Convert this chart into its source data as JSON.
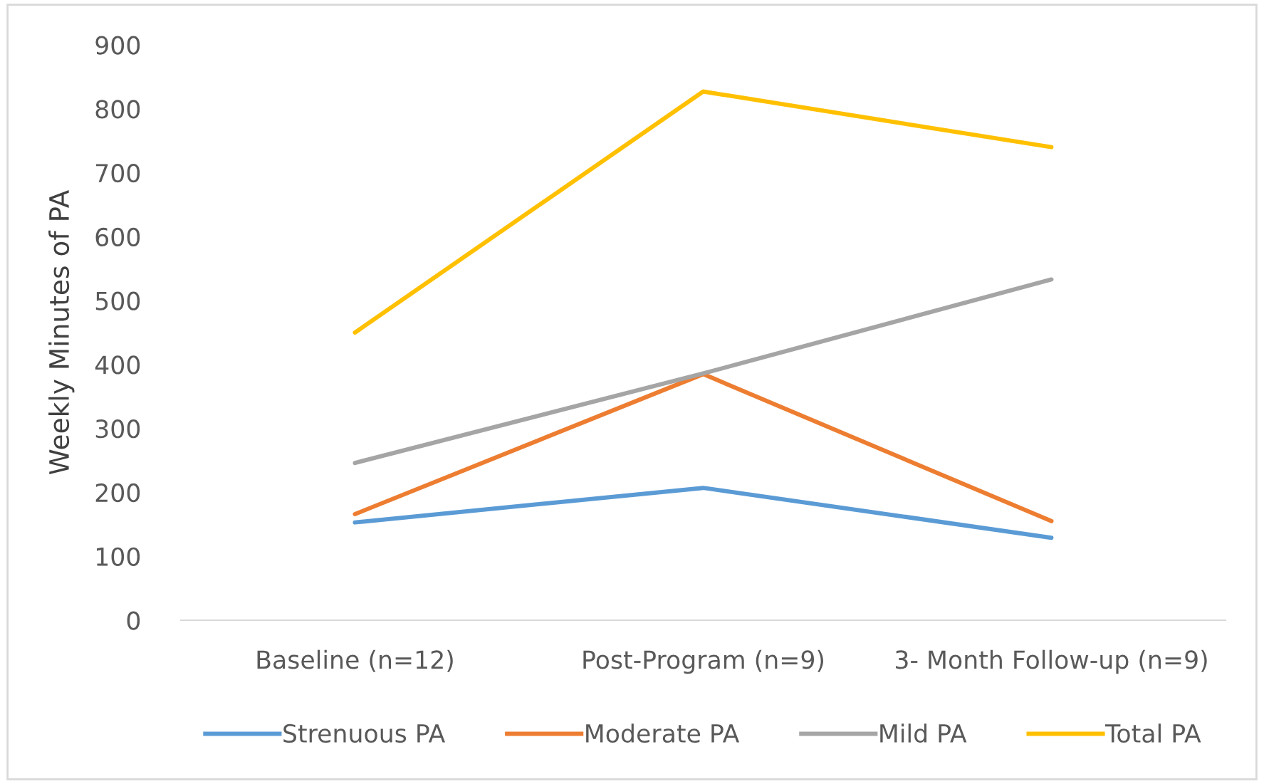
{
  "chart_data": {
    "type": "line",
    "ylabel": "Weekly Minutes of PA",
    "categories": [
      "Baseline (n=12)",
      "Post-Program (n=9)",
      "3- Month Follow-up (n=9)"
    ],
    "series": [
      {
        "name": "Strenuous PA",
        "color": "#5b9bd5",
        "values": [
          153,
          207,
          129
        ]
      },
      {
        "name": "Moderate PA",
        "color": "#ed7d31",
        "values": [
          166,
          385,
          155
        ]
      },
      {
        "name": "Mild PA",
        "color": "#a5a5a5",
        "values": [
          246,
          386,
          533
        ]
      },
      {
        "name": "Total PA",
        "color": "#ffc000",
        "values": [
          450,
          827,
          740
        ]
      }
    ],
    "ylim": [
      0,
      900
    ],
    "yticks": [
      0,
      100,
      200,
      300,
      400,
      500,
      600,
      700,
      800,
      900
    ],
    "grid": false,
    "legend": "bottom",
    "marker": "none",
    "line_style": "solid"
  }
}
